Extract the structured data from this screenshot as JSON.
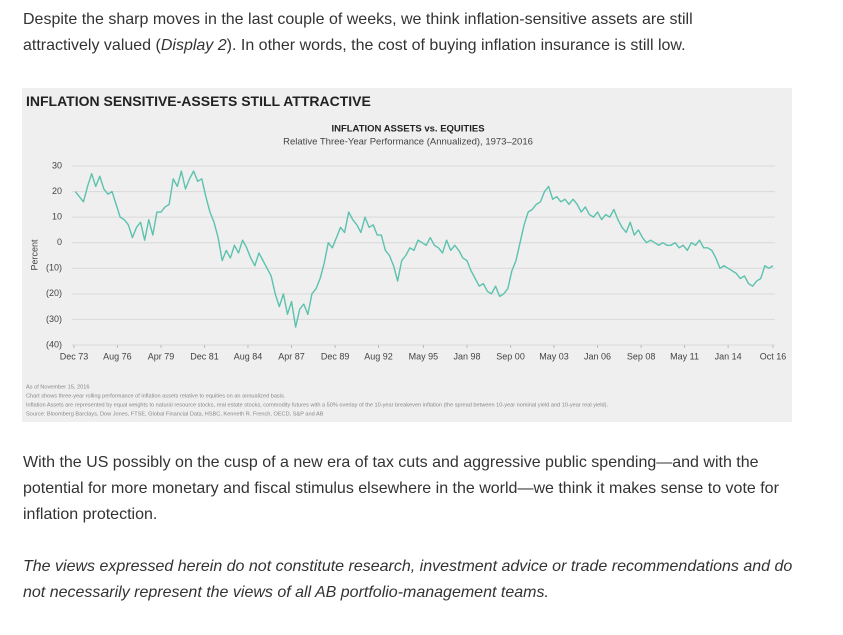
{
  "intro": {
    "parts": [
      "Despite the sharp moves in the last couple of weeks, we think inflation-sensitive assets are still attractively valued (",
      "Display 2",
      "). In other words, the cost of buying inflation insurance is still low."
    ]
  },
  "figure": {
    "title": "INFLATION SENSITIVE-ASSETS STILL ATTRACTIVE",
    "chart_data": {
      "type": "line",
      "title": "INFLATION ASSETS vs. EQUITIES",
      "subtitle": "Relative Three-Year Performance (Annualized), 1973–2016",
      "y_label": "Percent",
      "color": "#5cc2ae",
      "grid": true,
      "xlim": [
        1973.92,
        2016.75
      ],
      "ylim": [
        -40,
        30
      ],
      "xticks": [
        {
          "value": 1973.92,
          "label": "Dec 73"
        },
        {
          "value": 1976.58,
          "label": "Aug 76"
        },
        {
          "value": 1979.25,
          "label": "Apr 79"
        },
        {
          "value": 1981.92,
          "label": "Dec 81"
        },
        {
          "value": 1984.58,
          "label": "Aug 84"
        },
        {
          "value": 1987.25,
          "label": "Apr 87"
        },
        {
          "value": 1989.92,
          "label": "Dec 89"
        },
        {
          "value": 1992.58,
          "label": "Aug 92"
        },
        {
          "value": 1995.33,
          "label": "May 95"
        },
        {
          "value": 1998.0,
          "label": "Jan 98"
        },
        {
          "value": 2000.67,
          "label": "Sep 00"
        },
        {
          "value": 2003.33,
          "label": "May 03"
        },
        {
          "value": 2006.0,
          "label": "Jan 06"
        },
        {
          "value": 2008.67,
          "label": "Sep 08"
        },
        {
          "value": 2011.33,
          "label": "May 11"
        },
        {
          "value": 2014.0,
          "label": "Jan 14"
        },
        {
          "value": 2016.75,
          "label": "Oct 16"
        }
      ],
      "yticks": [
        30,
        20,
        10,
        0,
        {
          "value": -10,
          "label": "(10)"
        },
        {
          "value": -20,
          "label": "(20)"
        },
        {
          "value": -30,
          "label": "(30)"
        },
        {
          "value": -40,
          "label": "(40)"
        }
      ],
      "x": [
        1974,
        1974.25,
        1974.5,
        1974.75,
        1975,
        1975.25,
        1975.5,
        1975.75,
        1976,
        1976.25,
        1976.5,
        1976.75,
        1977,
        1977.25,
        1977.5,
        1977.75,
        1978,
        1978.25,
        1978.5,
        1978.75,
        1979,
        1979.25,
        1979.5,
        1979.75,
        1980,
        1980.25,
        1980.5,
        1980.75,
        1981,
        1981.25,
        1981.5,
        1981.75,
        1982,
        1982.25,
        1982.5,
        1982.75,
        1983,
        1983.25,
        1983.5,
        1983.75,
        1984,
        1984.25,
        1984.5,
        1984.75,
        1985,
        1985.25,
        1985.5,
        1985.75,
        1986,
        1986.25,
        1986.5,
        1986.75,
        1987,
        1987.25,
        1987.5,
        1987.75,
        1988,
        1988.25,
        1988.5,
        1988.75,
        1989,
        1989.25,
        1989.5,
        1989.75,
        1990,
        1990.25,
        1990.5,
        1990.75,
        1991,
        1991.25,
        1991.5,
        1991.75,
        1992,
        1992.25,
        1992.5,
        1992.75,
        1993,
        1993.25,
        1993.5,
        1993.75,
        1994,
        1994.25,
        1994.5,
        1994.75,
        1995,
        1995.25,
        1995.5,
        1995.75,
        1996,
        1996.25,
        1996.5,
        1996.75,
        1997,
        1997.25,
        1997.5,
        1997.75,
        1998,
        1998.25,
        1998.5,
        1998.75,
        1999,
        1999.25,
        1999.5,
        1999.75,
        2000,
        2000.25,
        2000.5,
        2000.75,
        2001,
        2001.25,
        2001.5,
        2001.75,
        2002,
        2002.25,
        2002.5,
        2002.75,
        2003,
        2003.25,
        2003.5,
        2003.75,
        2004,
        2004.25,
        2004.5,
        2004.75,
        2005,
        2005.25,
        2005.5,
        2005.75,
        2006,
        2006.25,
        2006.5,
        2006.75,
        2007,
        2007.25,
        2007.5,
        2007.75,
        2008,
        2008.25,
        2008.5,
        2008.75,
        2009,
        2009.25,
        2009.5,
        2009.75,
        2010,
        2010.25,
        2010.5,
        2010.75,
        2011,
        2011.25,
        2011.5,
        2011.75,
        2012,
        2012.25,
        2012.5,
        2012.75,
        2013,
        2013.25,
        2013.5,
        2013.75,
        2014,
        2014.25,
        2014.5,
        2014.75,
        2015,
        2015.25,
        2015.5,
        2015.75,
        2016,
        2016.25,
        2016.5,
        2016.75
      ],
      "values": [
        20,
        18,
        16,
        22,
        27,
        22,
        26,
        21,
        19,
        20,
        15,
        10,
        9,
        7,
        2,
        6,
        8,
        1,
        9,
        3,
        12,
        12,
        14,
        15,
        25,
        22,
        28,
        21,
        25,
        28,
        24,
        25,
        18,
        12,
        8,
        2,
        -7,
        -3,
        -6,
        -1,
        -4,
        1,
        -2,
        -6,
        -9,
        -4,
        -7,
        -10,
        -13,
        -20,
        -25,
        -20,
        -28,
        -23,
        -33,
        -26,
        -24,
        -28,
        -20,
        -18,
        -14,
        -8,
        0,
        -2,
        2,
        6,
        4,
        12,
        9,
        7,
        4,
        10,
        6,
        7,
        3,
        3,
        -3,
        -5,
        -9,
        -15,
        -7,
        -5,
        -2,
        -3,
        1,
        0,
        -1,
        2,
        -1,
        -2,
        -4,
        1,
        -3,
        -1,
        -3,
        -6,
        -7,
        -11,
        -14,
        -17,
        -16,
        -19,
        -20,
        -17,
        -21,
        -20,
        -18,
        -11,
        -7,
        0,
        7,
        12,
        13,
        15,
        16,
        20,
        22,
        17,
        18,
        16,
        17,
        15,
        17,
        15,
        12,
        14,
        11,
        10,
        12,
        9,
        11,
        10,
        13,
        9,
        6,
        4,
        8,
        3,
        5,
        2,
        0,
        1,
        0,
        -1,
        0,
        -1,
        -1,
        0,
        -2,
        -1,
        -3,
        0,
        -1,
        1,
        -2,
        -2,
        -3,
        -6,
        -10,
        -9,
        -10,
        -11,
        -12,
        -14,
        -13,
        -16,
        -17,
        -15,
        -14,
        -9,
        -10,
        -9
      ]
    },
    "notes": [
      "As of November 15, 2016",
      "Chart shows three-year rolling performance of inflation assets relative to equities on an annualized basis.",
      "Inflation Assets are represented by equal weights to natural resource stocks, real estate stocks, commodity futures with a 50% overlay of the 10-year breakeven inflation (the spread between 10-year nominal yield and 10-year real yield).",
      "Source: Bloomberg Barclays, Dow Jones, FTSE, Global Financial Data, HSBC, Kenneth R. French, OECD, S&P and AB"
    ]
  },
  "body": "With the US possibly on the cusp of a new era of tax cuts and aggressive public spending—and with the potential for more monetary and fiscal stimulus elsewhere in the world—we think it makes sense to vote for inflation protection.",
  "disclaimer": "The views expressed herein do not constitute research, investment advice or trade recommendations and do not necessarily represent the views of all AB portfolio-management teams."
}
